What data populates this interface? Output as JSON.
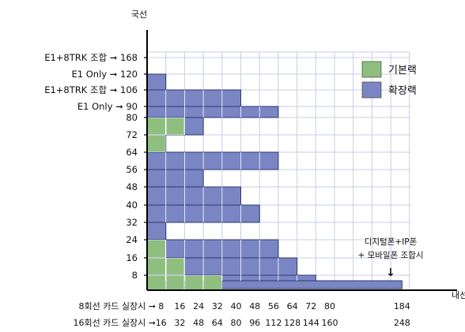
{
  "chart_data": {
    "type": "bar",
    "ylabel": "국선",
    "xlabel": "내선",
    "y_ticks": [
      "8",
      "16",
      "24",
      "32",
      "40",
      "48",
      "56",
      "64",
      "72",
      "80",
      "90",
      "106",
      "120",
      "168"
    ],
    "y_tick_prefixes": [
      "",
      "",
      "",
      "",
      "",
      "",
      "",
      "",
      "",
      "",
      "E1 Only",
      "E1+8TRK 조합",
      "E1 Only",
      "E1+8TRK 조합"
    ],
    "x_rows": [
      {
        "prefix": "8회선 카드 실장시",
        "ticks": [
          "8",
          "16",
          "24",
          "32",
          "40",
          "48",
          "56",
          "64",
          "72",
          "80",
          "184"
        ]
      },
      {
        "prefix": "16회선 카드 실장시",
        "ticks": [
          "16",
          "32",
          "48",
          "64",
          "80",
          "96",
          "112",
          "128",
          "144",
          "160",
          "248"
        ]
      }
    ],
    "series": [
      {
        "name": "기본랙",
        "color": "#8ebf7e"
      },
      {
        "name": "확장랙",
        "color": "#7a86c4"
      }
    ],
    "bars": [
      {
        "capacity": 120,
        "max_ext": 8
      },
      {
        "capacity": 106,
        "max_ext": 40
      },
      {
        "capacity": 90,
        "max_ext": 56
      },
      {
        "capacity": 80,
        "max_ext": 24
      },
      {
        "capacity": 72,
        "max_ext": 8
      },
      {
        "capacity": 64,
        "max_ext": 56
      },
      {
        "capacity": 56,
        "max_ext": 24
      },
      {
        "capacity": 48,
        "max_ext": 40
      },
      {
        "capacity": 40,
        "max_ext": 48
      },
      {
        "capacity": 32,
        "max_ext": 8
      },
      {
        "capacity": 24,
        "max_ext": 56
      },
      {
        "capacity": 16,
        "max_ext": 64
      },
      {
        "capacity": 8,
        "max_ext": 72
      },
      {
        "capacity": 0,
        "max_ext": 184
      }
    ],
    "green_cells": [
      {
        "extension": 8,
        "capacity": 8
      },
      {
        "extension": 16,
        "capacity": 8
      },
      {
        "extension": 24,
        "capacity": 8
      },
      {
        "extension": 32,
        "capacity": 8
      },
      {
        "extension": 8,
        "capacity": 16
      },
      {
        "extension": 16,
        "capacity": 16
      },
      {
        "extension": 8,
        "capacity": 24
      },
      {
        "extension": 8,
        "capacity": 72
      },
      {
        "extension": 8,
        "capacity": 80
      },
      {
        "extension": 16,
        "capacity": 80
      }
    ],
    "legend": "top-right",
    "annotation": [
      "디지털폰+IP폰",
      "+ 모바일폰 조합시"
    ],
    "arrow_glyph": "➞",
    "down_arrow_glyph": "↓"
  }
}
